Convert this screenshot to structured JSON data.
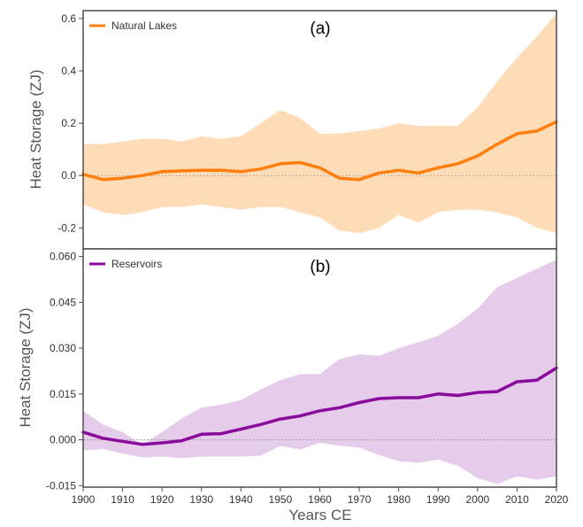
{
  "chart_data": [
    {
      "type": "line",
      "panel_label": "(a)",
      "ylabel": "Heat Storage (ZJ)",
      "xlim": [
        1900,
        2020
      ],
      "ylim": [
        -0.28,
        0.63
      ],
      "yticks": [
        -0.2,
        0.0,
        0.2,
        0.4,
        0.6
      ],
      "ytick_labels": [
        "-0.2",
        "0.0",
        "0.2",
        "0.4",
        "0.6"
      ],
      "zero_line": true,
      "legend_position": "top-left",
      "series": [
        {
          "name": "Natural Lakes",
          "color": "#ff7f0e",
          "band_color": "#ffdcb8",
          "x": [
            1900,
            1905,
            1910,
            1915,
            1920,
            1925,
            1930,
            1935,
            1940,
            1945,
            1950,
            1955,
            1960,
            1965,
            1970,
            1975,
            1980,
            1985,
            1990,
            1995,
            2000,
            2005,
            2010,
            2015,
            2020
          ],
          "y": [
            0.005,
            -0.015,
            -0.01,
            0.0,
            0.015,
            0.018,
            0.02,
            0.02,
            0.015,
            0.025,
            0.045,
            0.05,
            0.03,
            -0.01,
            -0.015,
            0.01,
            0.02,
            0.01,
            0.03,
            0.045,
            0.075,
            0.12,
            0.16,
            0.17,
            0.205
          ],
          "lower": [
            -0.11,
            -0.14,
            -0.15,
            -0.14,
            -0.12,
            -0.12,
            -0.11,
            -0.12,
            -0.13,
            -0.12,
            -0.12,
            -0.14,
            -0.16,
            -0.21,
            -0.22,
            -0.2,
            -0.15,
            -0.18,
            -0.14,
            -0.13,
            -0.13,
            -0.14,
            -0.16,
            -0.2,
            -0.22
          ],
          "upper": [
            0.12,
            0.12,
            0.13,
            0.14,
            0.14,
            0.13,
            0.15,
            0.14,
            0.15,
            0.2,
            0.25,
            0.22,
            0.16,
            0.16,
            0.17,
            0.18,
            0.2,
            0.19,
            0.19,
            0.19,
            0.26,
            0.36,
            0.45,
            0.53,
            0.62
          ]
        }
      ]
    },
    {
      "type": "line",
      "panel_label": "(b)",
      "ylabel": "Heat Storage (ZJ)",
      "xlabel": "Years CE",
      "xlim": [
        1900,
        2020
      ],
      "ylim": [
        -0.0155,
        0.0625
      ],
      "xticks": [
        1900,
        1910,
        1920,
        1930,
        1940,
        1950,
        1960,
        1970,
        1980,
        1990,
        2000,
        2010,
        2020
      ],
      "yticks": [
        -0.015,
        0.0,
        0.015,
        0.03,
        0.045,
        0.06
      ],
      "ytick_labels": [
        "-0.015",
        "0.000",
        "0.015",
        "0.030",
        "0.045",
        "0.060"
      ],
      "zero_line": true,
      "legend_position": "top-left",
      "series": [
        {
          "name": "Reservoirs",
          "color": "#8b0a9e",
          "band_color": "#e6cceb",
          "x": [
            1900,
            1905,
            1910,
            1915,
            1920,
            1925,
            1930,
            1935,
            1940,
            1945,
            1950,
            1955,
            1960,
            1965,
            1970,
            1975,
            1980,
            1985,
            1990,
            1995,
            2000,
            2005,
            2010,
            2015,
            2020
          ],
          "y": [
            0.0025,
            0.0005,
            -0.0005,
            -0.0015,
            -0.001,
            -0.0003,
            0.0018,
            0.002,
            0.0035,
            0.005,
            0.0068,
            0.0078,
            0.0095,
            0.0105,
            0.0122,
            0.0135,
            0.0138,
            0.0138,
            0.015,
            0.0145,
            0.0155,
            0.0158,
            0.019,
            0.0195,
            0.0235
          ],
          "lower": [
            -0.0035,
            -0.003,
            -0.0045,
            -0.0058,
            -0.0055,
            -0.006,
            -0.0055,
            -0.0055,
            -0.0055,
            -0.0052,
            -0.002,
            -0.0032,
            -0.001,
            -0.002,
            -0.0025,
            -0.005,
            -0.007,
            -0.0075,
            -0.0065,
            -0.0085,
            -0.0125,
            -0.0145,
            -0.012,
            -0.013,
            -0.012
          ],
          "upper": [
            0.0095,
            0.005,
            0.0025,
            -0.0015,
            0.0025,
            0.007,
            0.0105,
            0.0115,
            0.013,
            0.0165,
            0.0195,
            0.0215,
            0.0215,
            0.0265,
            0.028,
            0.0275,
            0.03,
            0.032,
            0.034,
            0.038,
            0.043,
            0.05,
            0.053,
            0.056,
            0.059
          ]
        }
      ]
    }
  ]
}
